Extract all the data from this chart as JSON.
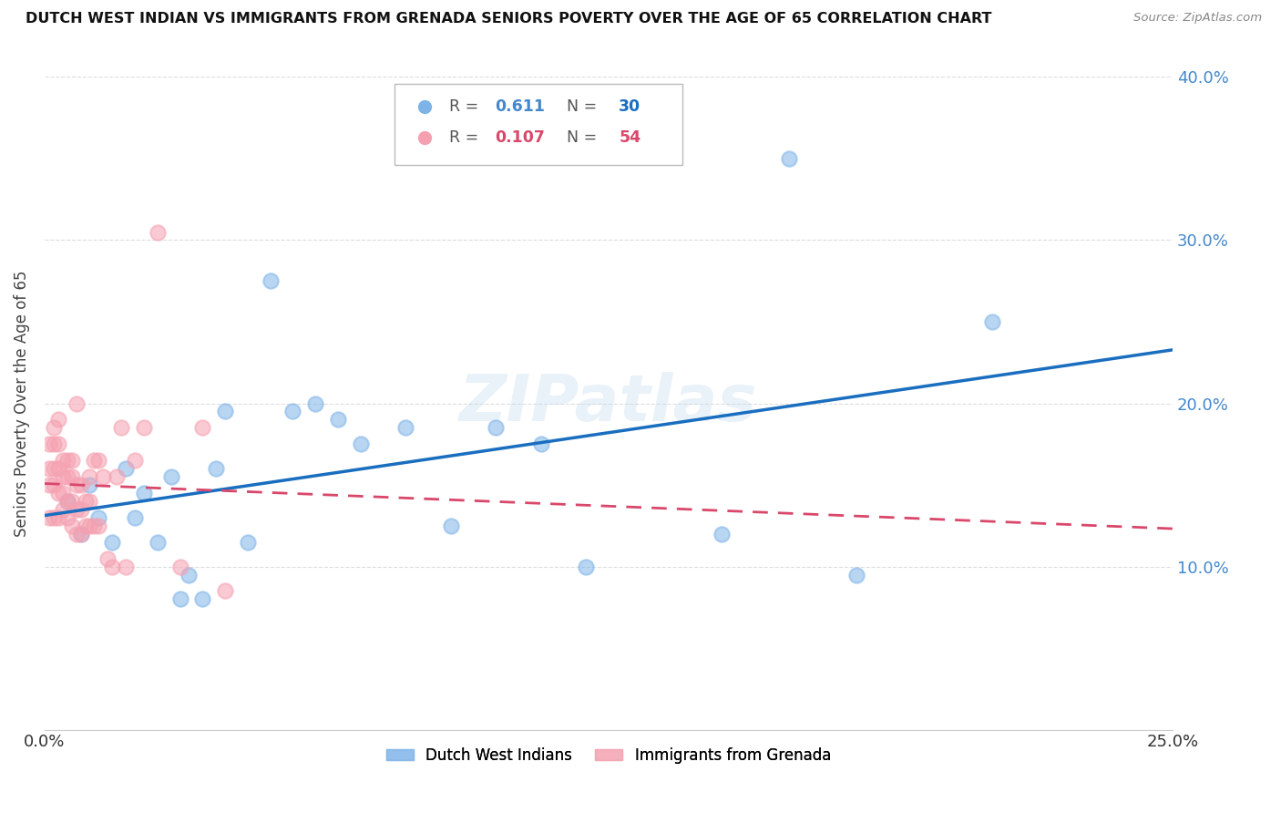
{
  "title": "DUTCH WEST INDIAN VS IMMIGRANTS FROM GRENADA SENIORS POVERTY OVER THE AGE OF 65 CORRELATION CHART",
  "source": "Source: ZipAtlas.com",
  "ylabel": "Seniors Poverty Over the Age of 65",
  "xlim": [
    0.0,
    0.25
  ],
  "ylim": [
    0.0,
    0.4
  ],
  "blue_R": 0.611,
  "blue_N": 30,
  "pink_R": 0.107,
  "pink_N": 54,
  "blue_color": "#7EB3E8",
  "pink_color": "#F5A0B0",
  "blue_line_color": "#1A6EBF",
  "pink_line_color": "#D9476A",
  "watermark": "ZIPatlas",
  "background_color": "#FFFFFF",
  "grid_color": "#DDDDDD",
  "blue_scatter_x": [
    0.005,
    0.008,
    0.01,
    0.012,
    0.015,
    0.018,
    0.02,
    0.022,
    0.025,
    0.028,
    0.03,
    0.032,
    0.035,
    0.038,
    0.04,
    0.045,
    0.05,
    0.055,
    0.06,
    0.065,
    0.07,
    0.08,
    0.09,
    0.1,
    0.11,
    0.12,
    0.15,
    0.165,
    0.18,
    0.21
  ],
  "blue_scatter_y": [
    0.14,
    0.12,
    0.15,
    0.13,
    0.115,
    0.16,
    0.13,
    0.145,
    0.115,
    0.155,
    0.08,
    0.095,
    0.08,
    0.16,
    0.195,
    0.115,
    0.275,
    0.195,
    0.2,
    0.19,
    0.175,
    0.185,
    0.125,
    0.185,
    0.175,
    0.1,
    0.12,
    0.35,
    0.095,
    0.25
  ],
  "pink_scatter_x": [
    0.001,
    0.001,
    0.001,
    0.001,
    0.002,
    0.002,
    0.002,
    0.002,
    0.002,
    0.003,
    0.003,
    0.003,
    0.003,
    0.003,
    0.004,
    0.004,
    0.004,
    0.004,
    0.005,
    0.005,
    0.005,
    0.005,
    0.006,
    0.006,
    0.006,
    0.006,
    0.007,
    0.007,
    0.007,
    0.007,
    0.008,
    0.008,
    0.008,
    0.009,
    0.009,
    0.01,
    0.01,
    0.01,
    0.011,
    0.011,
    0.012,
    0.012,
    0.013,
    0.014,
    0.015,
    0.016,
    0.017,
    0.018,
    0.02,
    0.022,
    0.025,
    0.03,
    0.035,
    0.04
  ],
  "pink_scatter_y": [
    0.13,
    0.15,
    0.16,
    0.175,
    0.13,
    0.15,
    0.16,
    0.175,
    0.185,
    0.13,
    0.145,
    0.16,
    0.175,
    0.19,
    0.135,
    0.145,
    0.155,
    0.165,
    0.13,
    0.14,
    0.155,
    0.165,
    0.125,
    0.14,
    0.155,
    0.165,
    0.12,
    0.135,
    0.15,
    0.2,
    0.12,
    0.135,
    0.15,
    0.125,
    0.14,
    0.125,
    0.14,
    0.155,
    0.125,
    0.165,
    0.125,
    0.165,
    0.155,
    0.105,
    0.1,
    0.155,
    0.185,
    0.1,
    0.165,
    0.185,
    0.305,
    0.1,
    0.185,
    0.085
  ]
}
